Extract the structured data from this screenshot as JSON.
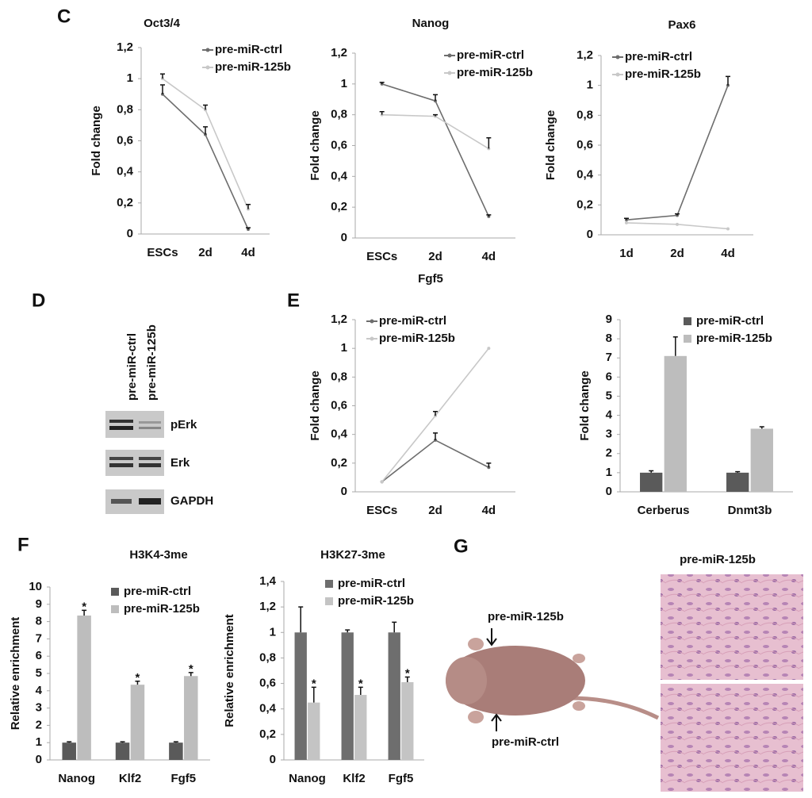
{
  "panel_labels": [
    "C",
    "D",
    "E",
    "F",
    "G"
  ],
  "blot": {
    "lanes": [
      "pre-miR-ctrl",
      "pre-miR-125b"
    ],
    "proteins": [
      "pErk",
      "Erk",
      "GAPDH"
    ]
  },
  "tumor": {
    "injection_labels": [
      "pre-miR-125b",
      "pre-miR-ctrl"
    ],
    "histology_title": "pre-miR-125b"
  },
  "chart_data": [
    {
      "type": "line",
      "title": "Oct3/4",
      "y_label": "Fold change",
      "categories": [
        "ESCs",
        "2d",
        "4d"
      ],
      "series": [
        {
          "name": "pre-miR-ctrl",
          "color": "#6d6d6d",
          "values": [
            0.9,
            0.64,
            0.03
          ],
          "errors": [
            0.06,
            0.05,
            0.01
          ]
        },
        {
          "name": "pre-miR-125b",
          "color": "#c8c8c8",
          "values": [
            1.0,
            0.8,
            0.16
          ],
          "errors": [
            0.03,
            0.03,
            0.03
          ]
        }
      ],
      "ylim": [
        0,
        1.2
      ],
      "yticks": [
        0,
        {
          "value": 0.2,
          "label": "0,2"
        },
        {
          "value": 0.4,
          "label": "0,4"
        },
        {
          "value": 0.6,
          "label": "0,6"
        },
        {
          "value": 0.8,
          "label": "0,8"
        },
        1,
        {
          "value": 1.2,
          "label": "1,2"
        }
      ],
      "grid": false,
      "legend": "upper right"
    },
    {
      "type": "line",
      "title": "Nanog",
      "y_label": "Fold change",
      "categories": [
        "ESCs",
        "2d",
        "4d"
      ],
      "series": [
        {
          "name": "pre-miR-ctrl",
          "color": "#6d6d6d",
          "values": [
            1.0,
            0.89,
            0.14
          ],
          "errors": [
            0.01,
            0.04,
            0.01
          ]
        },
        {
          "name": "pre-miR-125b",
          "color": "#c8c8c8",
          "values": [
            0.8,
            0.79,
            0.58
          ],
          "errors": [
            0.02,
            0.01,
            0.07
          ]
        }
      ],
      "ylim": [
        0,
        1.2
      ],
      "yticks": [
        0,
        {
          "value": 0.2,
          "label": "0,2"
        },
        {
          "value": 0.4,
          "label": "0,4"
        },
        {
          "value": 0.6,
          "label": "0,6"
        },
        {
          "value": 0.8,
          "label": "0,8"
        },
        1,
        {
          "value": 1.2,
          "label": "1,2"
        }
      ],
      "grid": false,
      "legend": "upper right"
    },
    {
      "type": "line",
      "title": "Pax6",
      "y_label": "Fold change",
      "categories": [
        "1d",
        "2d",
        "4d"
      ],
      "series": [
        {
          "name": "pre-miR-ctrl",
          "color": "#6d6d6d",
          "values": [
            0.1,
            0.13,
            1.0
          ],
          "errors": [
            0.01,
            0.01,
            0.06
          ]
        },
        {
          "name": "pre-miR-125b",
          "color": "#c8c8c8",
          "values": [
            0.08,
            0.07,
            0.04
          ],
          "errors": [
            null,
            null,
            null
          ]
        }
      ],
      "ylim": [
        0,
        1.2
      ],
      "yticks": [
        0,
        {
          "value": 0.2,
          "label": "0,2"
        },
        {
          "value": 0.4,
          "label": "0,4"
        },
        {
          "value": 0.6,
          "label": "0,6"
        },
        {
          "value": 0.8,
          "label": "0,8"
        },
        1,
        {
          "value": 1.2,
          "label": "1,2"
        }
      ],
      "grid": false,
      "legend": "upper left"
    },
    {
      "type": "line",
      "title": "Fgf5",
      "y_label": "Fold change",
      "categories": [
        "ESCs",
        "2d",
        "4d"
      ],
      "series": [
        {
          "name": "pre-miR-ctrl",
          "color": "#6d6d6d",
          "values": [
            0.07,
            0.36,
            0.17
          ],
          "errors": [
            null,
            0.05,
            0.03
          ]
        },
        {
          "name": "pre-miR-125b",
          "color": "#c8c8c8",
          "values": [
            0.07,
            0.53,
            1.0
          ],
          "errors": [
            null,
            0.03,
            null
          ]
        }
      ],
      "ylim": [
        0,
        1.2
      ],
      "yticks": [
        0,
        {
          "value": 0.2,
          "label": "0,2"
        },
        {
          "value": 0.4,
          "label": "0,4"
        },
        {
          "value": 0.6,
          "label": "0,6"
        },
        {
          "value": 0.8,
          "label": "0,8"
        },
        1,
        {
          "value": 1.2,
          "label": "1,2"
        }
      ],
      "grid": false,
      "legend": "upper left"
    },
    {
      "type": "bar",
      "y_label": "Fold change",
      "categories": [
        "Cerberus",
        "Dnmt3b"
      ],
      "series": [
        {
          "name": "pre-miR-ctrl",
          "color": "#5a5a5a",
          "values": [
            1,
            1
          ],
          "errors": [
            0.1,
            0.05
          ]
        },
        {
          "name": "pre-miR-125b",
          "color": "#bdbdbd",
          "values": [
            7.1,
            3.3
          ],
          "errors": [
            1.0,
            0.1
          ]
        }
      ],
      "ylim": [
        0,
        9
      ],
      "yticks": [
        0,
        1,
        2,
        3,
        4,
        5,
        6,
        7,
        8,
        9
      ],
      "grid": false,
      "legend": "upper right"
    },
    {
      "type": "bar",
      "title": "H3K4-3me",
      "y_label": "Relative enrichment",
      "categories": [
        "Nanog",
        "Klf2",
        "Fgf5"
      ],
      "series": [
        {
          "name": "pre-miR-ctrl",
          "color": "#5a5a5a",
          "values": [
            1,
            1,
            1
          ],
          "errors": [
            0.05,
            0.05,
            0.05
          ]
        },
        {
          "name": "pre-miR-125b",
          "color": "#bdbdbd",
          "values": [
            8.35,
            4.35,
            4.85
          ],
          "errors": [
            0.3,
            0.2,
            0.2
          ]
        }
      ],
      "annotations": [
        "*",
        "*",
        "*"
      ],
      "ylim": [
        0,
        10
      ],
      "yticks": [
        0,
        1,
        2,
        3,
        4,
        5,
        6,
        7,
        8,
        9,
        10
      ],
      "grid": false,
      "legend": "upper right"
    },
    {
      "type": "bar",
      "title": "H3K27-3me",
      "y_label": "Relative enrichment",
      "categories": [
        "Nanog",
        "Klf2",
        "Fgf5"
      ],
      "series": [
        {
          "name": "pre-miR-ctrl",
          "color": "#6e6e6e",
          "values": [
            1,
            1,
            1
          ],
          "errors": [
            0.2,
            0.02,
            0.08
          ]
        },
        {
          "name": "pre-miR-125b",
          "color": "#c4c4c4",
          "values": [
            0.45,
            0.51,
            0.61
          ],
          "errors": [
            0.12,
            0.06,
            0.04
          ]
        }
      ],
      "annotations": [
        "*",
        "*",
        "*"
      ],
      "ylim": [
        0,
        1.4
      ],
      "yticks": [
        0,
        {
          "value": 0.2,
          "label": "0,2"
        },
        {
          "value": 0.4,
          "label": "0,4"
        },
        {
          "value": 0.6,
          "label": "0,6"
        },
        {
          "value": 0.8,
          "label": "0,8"
        },
        1,
        {
          "value": 1.2,
          "label": "1,2"
        },
        {
          "value": 1.4,
          "label": "1,4"
        }
      ],
      "grid": false,
      "legend": "upper right"
    }
  ]
}
